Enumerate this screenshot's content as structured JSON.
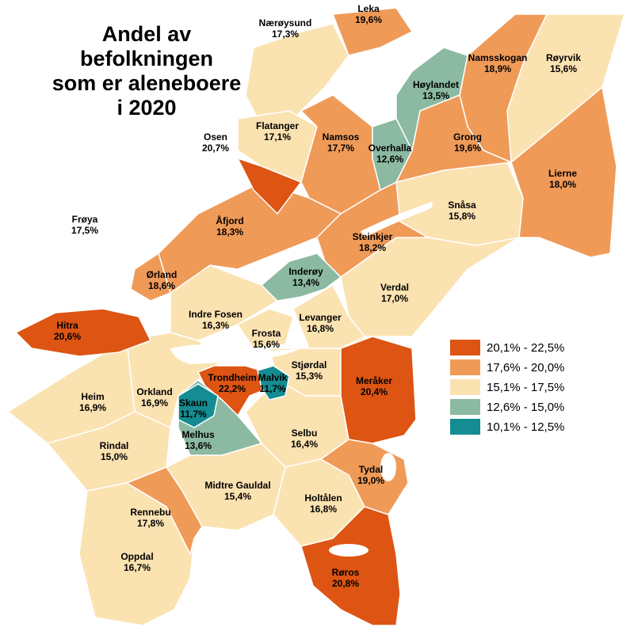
{
  "title": [
    "Andel av",
    "befolkningen",
    "som er aleneboere",
    "i 2020"
  ],
  "colors": {
    "c1": "#dd5413",
    "c2": "#f09a58",
    "c3": "#fbe2b1",
    "c4": "#8bb9a1",
    "c5": "#148c91",
    "border": "#ffffff",
    "water": "#ffffff"
  },
  "legend": [
    {
      "label": "20,1% - 22,5%",
      "color": "#dd5413"
    },
    {
      "label": "17,6% - 20,0%",
      "color": "#f09a58"
    },
    {
      "label": "15,1% - 17,5%",
      "color": "#fbe2b1"
    },
    {
      "label": "12,6% - 15,0%",
      "color": "#8bb9a1"
    },
    {
      "label": "10,1% - 12,5%",
      "color": "#148c91"
    }
  ],
  "municipalities": [
    {
      "name": "Leka",
      "value": "19,6%"
    },
    {
      "name": "Nærøysund",
      "value": "17,3%"
    },
    {
      "name": "Namsskogan",
      "value": "18,9%"
    },
    {
      "name": "Røyrvik",
      "value": "15,6%"
    },
    {
      "name": "Høylandet",
      "value": "13,5%"
    },
    {
      "name": "Osen",
      "value": "20,7%"
    },
    {
      "name": "Flatanger",
      "value": "17,1%"
    },
    {
      "name": "Namsos",
      "value": "17,7%"
    },
    {
      "name": "Overhalla",
      "value": "12,6%"
    },
    {
      "name": "Grong",
      "value": "19,6%"
    },
    {
      "name": "Lierne",
      "value": "18,0%"
    },
    {
      "name": "Snåsa",
      "value": "15,8%"
    },
    {
      "name": "Frøya",
      "value": "17,5%"
    },
    {
      "name": "Åfjord",
      "value": "18,3%"
    },
    {
      "name": "Steinkjer",
      "value": "18,2%"
    },
    {
      "name": "Ørland",
      "value": "18,6%"
    },
    {
      "name": "Inderøy",
      "value": "13,4%"
    },
    {
      "name": "Verdal",
      "value": "17,0%"
    },
    {
      "name": "Indre Fosen",
      "value": "16,3%"
    },
    {
      "name": "Levanger",
      "value": "16,8%"
    },
    {
      "name": "Hitra",
      "value": "20,6%"
    },
    {
      "name": "Frosta",
      "value": "15,6%"
    },
    {
      "name": "Stjørdal",
      "value": "15,3%"
    },
    {
      "name": "Trondheim",
      "value": "22,2%"
    },
    {
      "name": "Malvik",
      "value": "11,7%"
    },
    {
      "name": "Meråker",
      "value": "20,4%"
    },
    {
      "name": "Heim",
      "value": "16,9%"
    },
    {
      "name": "Orkland",
      "value": "16,9%"
    },
    {
      "name": "Skaun",
      "value": "11,7%"
    },
    {
      "name": "Melhus",
      "value": "13,6%"
    },
    {
      "name": "Selbu",
      "value": "16,4%"
    },
    {
      "name": "Rindal",
      "value": "15,0%"
    },
    {
      "name": "Tydal",
      "value": "19,0%"
    },
    {
      "name": "Rennebu",
      "value": "17,8%"
    },
    {
      "name": "Midtre Gauldal",
      "value": "15,4%"
    },
    {
      "name": "Holtålen",
      "value": "16,8%"
    },
    {
      "name": "Oppdal",
      "value": "16,7%"
    },
    {
      "name": "Røros",
      "value": "20,8%"
    }
  ]
}
